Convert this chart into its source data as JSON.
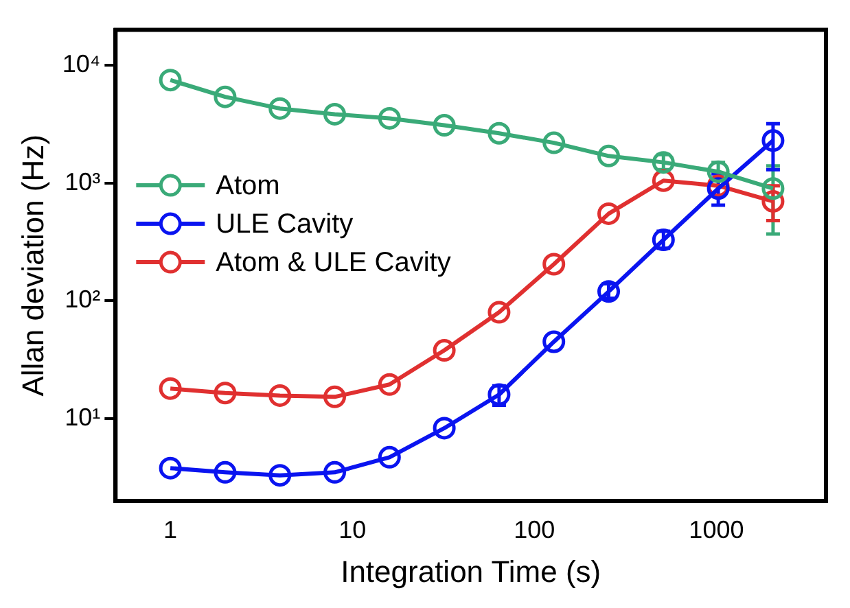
{
  "chart_data": {
    "type": "line",
    "xlabel": "Integration Time (s)",
    "ylabel": "Allan deviation (Hz)",
    "x": [
      1,
      2,
      4,
      8,
      16,
      32,
      64,
      128,
      256,
      512,
      1024,
      2048
    ],
    "series": [
      {
        "name": "Atom",
        "color": "#3aaa78",
        "values": [
          7500,
          5400,
          4300,
          3850,
          3550,
          3100,
          2650,
          2200,
          1700,
          1500,
          1250,
          900
        ],
        "errors": [
          null,
          null,
          null,
          null,
          null,
          null,
          null,
          null,
          null,
          [
            1300,
            1750
          ],
          [
            1050,
            1500
          ],
          [
            370,
            1400
          ]
        ]
      },
      {
        "name": "ULE Cavity",
        "color": "#0a14f0",
        "values": [
          3.8,
          3.5,
          3.3,
          3.5,
          4.7,
          8.3,
          16,
          45,
          120,
          330,
          900,
          2300
        ],
        "errors": [
          null,
          null,
          null,
          null,
          null,
          null,
          [
            13,
            19
          ],
          null,
          [
            105,
            140
          ],
          [
            280,
            390
          ],
          [
            650,
            1200
          ],
          [
            1300,
            3200
          ]
        ]
      },
      {
        "name": "Atom & ULE Cavity",
        "color": "#e03030",
        "values": [
          18,
          16.5,
          15.7,
          15.3,
          19.5,
          38,
          80,
          205,
          550,
          1050,
          950,
          700
        ],
        "errors": [
          null,
          null,
          null,
          null,
          null,
          null,
          null,
          null,
          null,
          null,
          null,
          [
            480,
            950
          ]
        ]
      }
    ],
    "log": "xy",
    "xlim": [
      0.5,
      4000
    ],
    "ylim": [
      2,
      20000
    ],
    "xticks": [
      1,
      10,
      100,
      1000
    ],
    "yticks": [
      {
        "value": 10,
        "label": "10¹"
      },
      {
        "value": 100,
        "label": "10²"
      },
      {
        "value": 1000,
        "label": "10³"
      },
      {
        "value": 10000,
        "label": "10⁴"
      }
    ],
    "grid": false,
    "legend": "left",
    "marker": "circle",
    "line_style": "solid"
  }
}
